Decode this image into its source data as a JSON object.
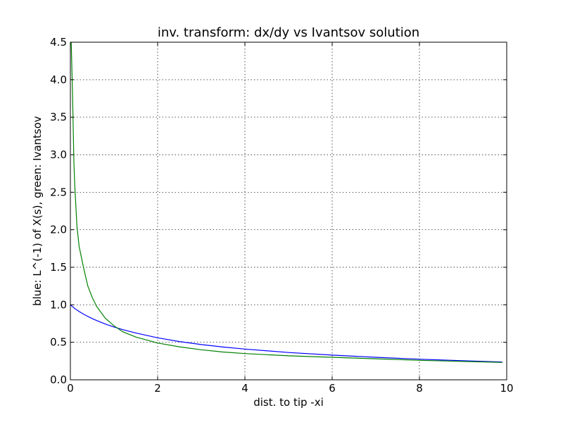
{
  "chart_data": {
    "type": "line",
    "title": "inv. transform: dx/dy vs Ivantsov solution",
    "xlabel": "dist. to tip -xi",
    "ylabel": "blue: L^(-1) of X(s), green: Ivantsov",
    "xlim": [
      0,
      10
    ],
    "ylim": [
      0,
      4.5
    ],
    "xticks": [
      0,
      2,
      4,
      6,
      8,
      10
    ],
    "yticks": [
      0.0,
      0.5,
      1.0,
      1.5,
      2.0,
      2.5,
      3.0,
      3.5,
      4.0,
      4.5
    ],
    "xtick_labels": [
      "0",
      "2",
      "4",
      "6",
      "8",
      "10"
    ],
    "ytick_labels": [
      "0.0",
      "0.5",
      "1.0",
      "1.5",
      "2.0",
      "2.5",
      "3.0",
      "3.5",
      "4.0",
      "4.5"
    ],
    "grid": true,
    "series": [
      {
        "color": "#0000ff",
        "x": [
          0.0,
          0.1,
          0.2,
          0.3,
          0.4,
          0.5,
          0.6,
          0.8,
          1.0,
          1.2,
          1.5,
          2.0,
          2.5,
          3.0,
          3.5,
          4.0,
          5.0,
          6.0,
          7.0,
          8.0,
          9.0,
          9.9
        ],
        "y": [
          1.0,
          0.95,
          0.91,
          0.876,
          0.845,
          0.817,
          0.79,
          0.743,
          0.704,
          0.668,
          0.624,
          0.56,
          0.51,
          0.47,
          0.437,
          0.41,
          0.364,
          0.329,
          0.3,
          0.275,
          0.254,
          0.237
        ]
      },
      {
        "color": "#008000",
        "x": [
          0.02,
          0.05,
          0.08,
          0.1,
          0.15,
          0.2,
          0.3,
          0.4,
          0.5,
          0.6,
          0.8,
          1.0,
          1.2,
          1.5,
          2.0,
          2.5,
          3.0,
          3.5,
          4.0,
          5.0,
          6.0,
          7.0,
          8.0,
          9.0,
          9.9
        ],
        "y": [
          4.5,
          3.8,
          2.9,
          2.6,
          2.05,
          1.78,
          1.5,
          1.25,
          1.1,
          0.98,
          0.82,
          0.72,
          0.64,
          0.57,
          0.49,
          0.44,
          0.4,
          0.37,
          0.35,
          0.32,
          0.3,
          0.28,
          0.26,
          0.245,
          0.232
        ]
      }
    ]
  }
}
